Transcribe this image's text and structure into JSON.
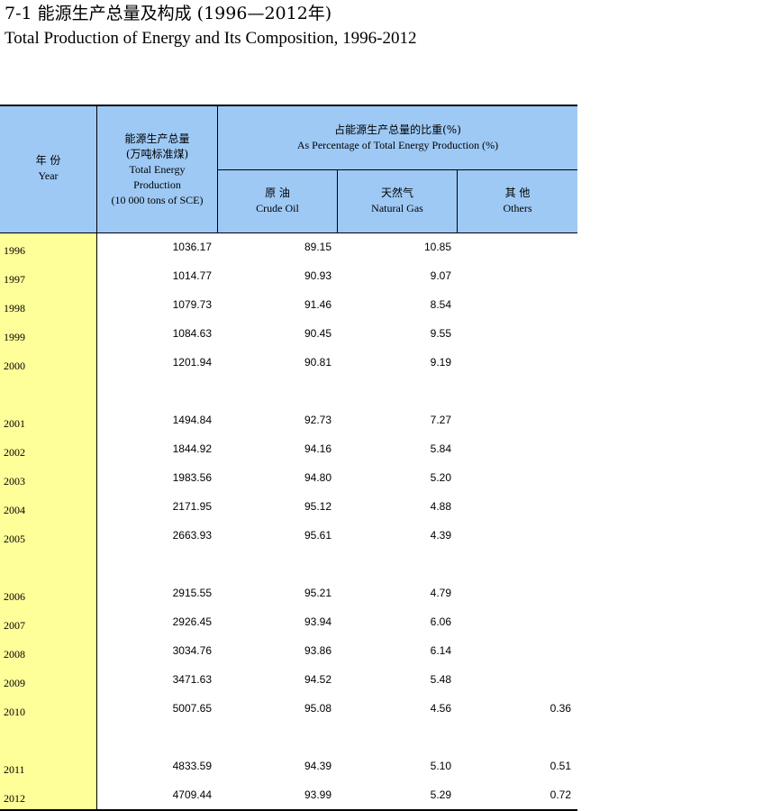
{
  "title": {
    "cn": "7-1 能源生产总量及构成 (1996—2012年)",
    "en": "Total Production of Energy and Its Composition, 1996-2012"
  },
  "header": {
    "year": {
      "cn": "年  份",
      "en": "Year"
    },
    "total": {
      "cn1": "能源生产总量",
      "cn2": "(万吨标准煤)",
      "en1": "Total Energy",
      "en2": "Production",
      "en3": "(10 000 tons of SCE)"
    },
    "share": {
      "cn": "占能源生产总量的比重(%)",
      "en": "As Percentage of Total Energy Production (%)"
    },
    "oil": {
      "cn": "原  油",
      "en": "Crude Oil"
    },
    "gas": {
      "cn": "天然气",
      "en": "Natural Gas"
    },
    "others": {
      "cn": "其  他",
      "en": "Others"
    }
  },
  "rows": [
    {
      "year": "1996",
      "total": "1036.17",
      "oil": "89.15",
      "gas": "10.85",
      "others": ""
    },
    {
      "year": "1997",
      "total": "1014.77",
      "oil": "90.93",
      "gas": "9.07",
      "others": ""
    },
    {
      "year": "1998",
      "total": "1079.73",
      "oil": "91.46",
      "gas": "8.54",
      "others": ""
    },
    {
      "year": "1999",
      "total": "1084.63",
      "oil": "90.45",
      "gas": "9.55",
      "others": ""
    },
    {
      "year": "2000",
      "total": "1201.94",
      "oil": "90.81",
      "gas": "9.19",
      "others": ""
    },
    {
      "year": "2001",
      "total": "1494.84",
      "oil": "92.73",
      "gas": "7.27",
      "others": ""
    },
    {
      "year": "2002",
      "total": "1844.92",
      "oil": "94.16",
      "gas": "5.84",
      "others": ""
    },
    {
      "year": "2003",
      "total": "1983.56",
      "oil": "94.80",
      "gas": "5.20",
      "others": ""
    },
    {
      "year": "2004",
      "total": "2171.95",
      "oil": "95.12",
      "gas": "4.88",
      "others": ""
    },
    {
      "year": "2005",
      "total": "2663.93",
      "oil": "95.61",
      "gas": "4.39",
      "others": ""
    },
    {
      "year": "2006",
      "total": "2915.55",
      "oil": "95.21",
      "gas": "4.79",
      "others": ""
    },
    {
      "year": "2007",
      "total": "2926.45",
      "oil": "93.94",
      "gas": "6.06",
      "others": ""
    },
    {
      "year": "2008",
      "total": "3034.76",
      "oil": "93.86",
      "gas": "6.14",
      "others": ""
    },
    {
      "year": "2009",
      "total": "3471.63",
      "oil": "94.52",
      "gas": "5.48",
      "others": ""
    },
    {
      "year": "2010",
      "total": "5007.65",
      "oil": "95.08",
      "gas": "4.56",
      "others": "0.36"
    },
    {
      "year": "2011",
      "total": "4833.59",
      "oil": "94.39",
      "gas": "5.10",
      "others": "0.51"
    },
    {
      "year": "2012",
      "total": "4709.44",
      "oil": "93.99",
      "gas": "5.29",
      "others": "0.72"
    }
  ]
}
